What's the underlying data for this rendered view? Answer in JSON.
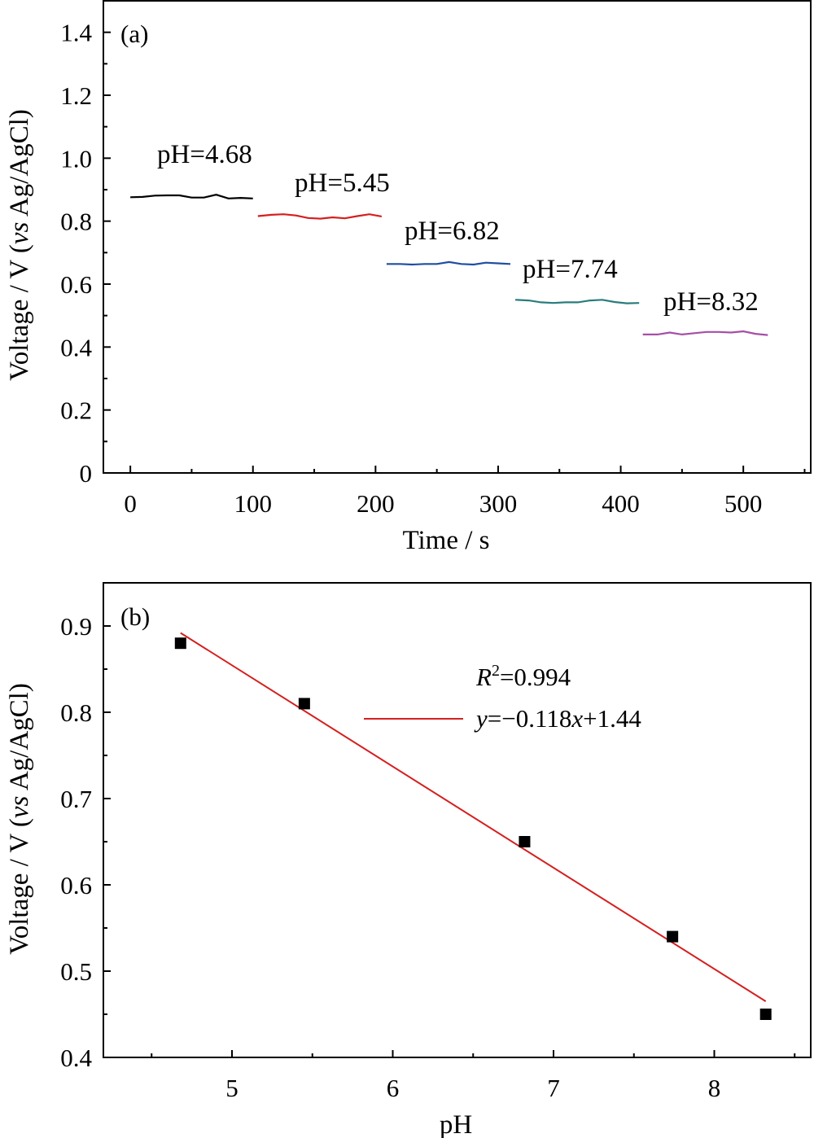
{
  "chart_data": [
    {
      "panel_label": "(a)",
      "type": "line",
      "xlabel": "Time / s",
      "ylabel_parts": [
        "Voltage / V (",
        "vs",
        " Ag/AgCl)"
      ],
      "xlim": [
        -22,
        555
      ],
      "ylim": [
        0,
        1.5
      ],
      "xticks": [
        0,
        100,
        200,
        300,
        400,
        500
      ],
      "xtick_labels": [
        "0",
        "100",
        "200",
        "300",
        "400",
        "500"
      ],
      "yticks": [
        0,
        0.2,
        0.4,
        0.6,
        0.8,
        1.0,
        1.2,
        1.4
      ],
      "ytick_labels": [
        "0",
        "0.2",
        "0.4",
        "0.6",
        "0.8",
        "1.0",
        "1.2",
        "1.4"
      ],
      "grid": false,
      "series": [
        {
          "label": "pH=4.68",
          "color": "#000000",
          "x": [
            0,
            10,
            20,
            30,
            40,
            50,
            60,
            70,
            80,
            90,
            100
          ],
          "y": [
            0.876,
            0.877,
            0.881,
            0.882,
            0.882,
            0.875,
            0.875,
            0.884,
            0.872,
            0.874,
            0.872
          ]
        },
        {
          "label": "pH=5.45",
          "color": "#d51f1f",
          "x": [
            104,
            115,
            125,
            135,
            145,
            155,
            165,
            175,
            185,
            195,
            205
          ],
          "y": [
            0.816,
            0.82,
            0.822,
            0.818,
            0.81,
            0.808,
            0.812,
            0.809,
            0.816,
            0.822,
            0.815
          ]
        },
        {
          "label": "pH=6.82",
          "color": "#1f4ea0",
          "x": [
            209,
            220,
            230,
            240,
            250,
            260,
            270,
            280,
            290,
            300,
            310
          ],
          "y": [
            0.664,
            0.664,
            0.662,
            0.664,
            0.664,
            0.67,
            0.664,
            0.662,
            0.668,
            0.666,
            0.664
          ]
        },
        {
          "label": "pH=7.74",
          "color": "#2a7c7c",
          "x": [
            314,
            325,
            335,
            345,
            355,
            365,
            375,
            385,
            395,
            405,
            415
          ],
          "y": [
            0.55,
            0.548,
            0.542,
            0.54,
            0.542,
            0.542,
            0.548,
            0.55,
            0.543,
            0.539,
            0.54
          ]
        },
        {
          "label": "pH=8.32",
          "color": "#a64ea6",
          "x": [
            418,
            430,
            440,
            450,
            460,
            470,
            480,
            490,
            500,
            510,
            520
          ],
          "y": [
            0.44,
            0.44,
            0.446,
            0.44,
            0.444,
            0.448,
            0.448,
            0.446,
            0.45,
            0.442,
            0.438
          ]
        }
      ]
    },
    {
      "panel_label": "(b)",
      "type": "scatter",
      "xlabel": "pH",
      "ylabel_parts": [
        "Voltage / V (",
        "vs",
        " Ag/AgCl)"
      ],
      "xlim": [
        4.2,
        8.6
      ],
      "ylim": [
        0.4,
        0.95
      ],
      "xticks": [
        5,
        6,
        7,
        8
      ],
      "xtick_labels": [
        "5",
        "6",
        "7",
        "8"
      ],
      "yticks": [
        0.4,
        0.5,
        0.6,
        0.7,
        0.8,
        0.9
      ],
      "ytick_labels": [
        "0.4",
        "0.5",
        "0.6",
        "0.7",
        "0.8",
        "0.9"
      ],
      "grid": false,
      "points": {
        "x": [
          4.68,
          5.45,
          6.82,
          7.74,
          8.32
        ],
        "y": [
          0.88,
          0.81,
          0.65,
          0.54,
          0.45
        ],
        "color": "#000000"
      },
      "fit": {
        "x": [
          4.68,
          8.32
        ],
        "y": [
          0.892,
          0.465
        ],
        "color": "#d51f1f",
        "r2_label": "R",
        "r2_sup": "2",
        "r2_value": "=0.994",
        "equation_parts": [
          "y",
          "=−0.118",
          "x",
          "+1.44"
        ]
      },
      "legend_position": "top-right"
    }
  ]
}
